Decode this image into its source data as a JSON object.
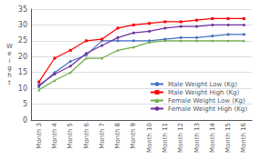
{
  "chart_data": {
    "type": "line",
    "ylabel": "W\ne\ni\ng\nh\nt",
    "categories": [
      "Month 3",
      "Month 4",
      "Month 5",
      "Month 6",
      "Month 7",
      "Month 8",
      "Month 9",
      "Month 10",
      "Month 11",
      "Month 12",
      "Month 13",
      "Month 14",
      "Month 15",
      "Month 16"
    ],
    "series": [
      {
        "name": "Male Weight Low (Kg)",
        "color": "#4472C4",
        "marker": "circle",
        "values": [
          10.5,
          15.0,
          18.5,
          20.5,
          25.0,
          25.0,
          25.0,
          25.0,
          25.5,
          26.0,
          26.0,
          26.5,
          27.0,
          27.0
        ]
      },
      {
        "name": "Male Weight High (Kg)",
        "color": "#FF0000",
        "marker": "square",
        "values": [
          12.0,
          19.5,
          22.0,
          25.0,
          25.5,
          29.0,
          30.0,
          30.5,
          31.0,
          31.0,
          31.5,
          32.0,
          32.0,
          32.0
        ]
      },
      {
        "name": "Female Weight Low (Kg)",
        "color": "#70AD47",
        "marker": "triangle",
        "values": [
          9.5,
          12.5,
          15.0,
          19.5,
          19.5,
          22.0,
          23.0,
          24.5,
          25.0,
          25.0,
          25.0,
          25.0,
          25.0,
          25.0
        ]
      },
      {
        "name": "Female Weight High (Kg)",
        "color": "#7030A0",
        "marker": "circle",
        "values": [
          11.0,
          14.5,
          17.0,
          21.0,
          23.5,
          26.0,
          27.5,
          28.0,
          29.0,
          29.5,
          29.5,
          30.0,
          30.0,
          30.0
        ]
      }
    ],
    "ylim": [
      0,
      35
    ],
    "yticks": [
      0,
      5,
      10,
      15,
      20,
      25,
      30,
      35
    ],
    "grid": true,
    "legend": "lower right"
  }
}
